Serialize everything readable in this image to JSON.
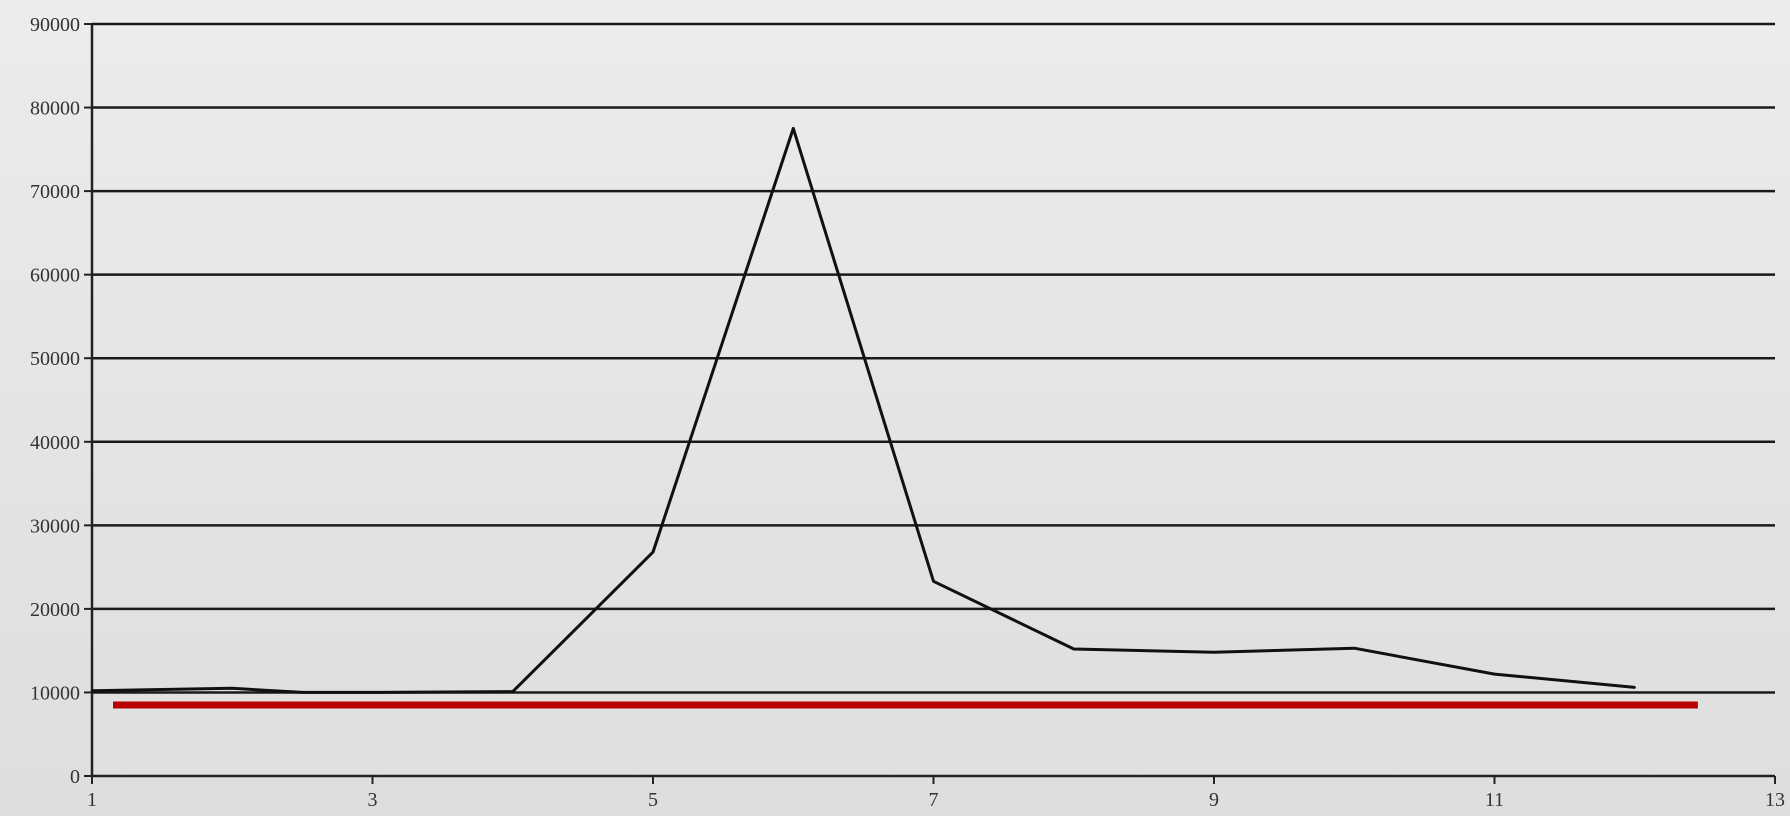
{
  "chart_data": {
    "type": "line",
    "title": "",
    "xlabel": "",
    "ylabel": "",
    "xlim": [
      1,
      13
    ],
    "ylim": [
      0,
      90000
    ],
    "x_ticks": [
      1,
      3,
      5,
      7,
      9,
      11,
      13
    ],
    "y_ticks": [
      0,
      10000,
      20000,
      30000,
      40000,
      50000,
      60000,
      70000,
      80000,
      90000
    ],
    "grid": true,
    "legend": "none",
    "series": [
      {
        "color": "#111111",
        "x": [
          1,
          2,
          2.5,
          3,
          4,
          5,
          6,
          7,
          8,
          9,
          10,
          11,
          12
        ],
        "y": [
          10200,
          10500,
          10000,
          10000,
          10100,
          26800,
          77500,
          23300,
          15200,
          14800,
          15300,
          12200,
          10600
        ]
      }
    ],
    "reference_lines": [
      {
        "color": "#b80000",
        "x_start": 1.15,
        "x_end": 12.45,
        "y": 8500
      }
    ]
  }
}
